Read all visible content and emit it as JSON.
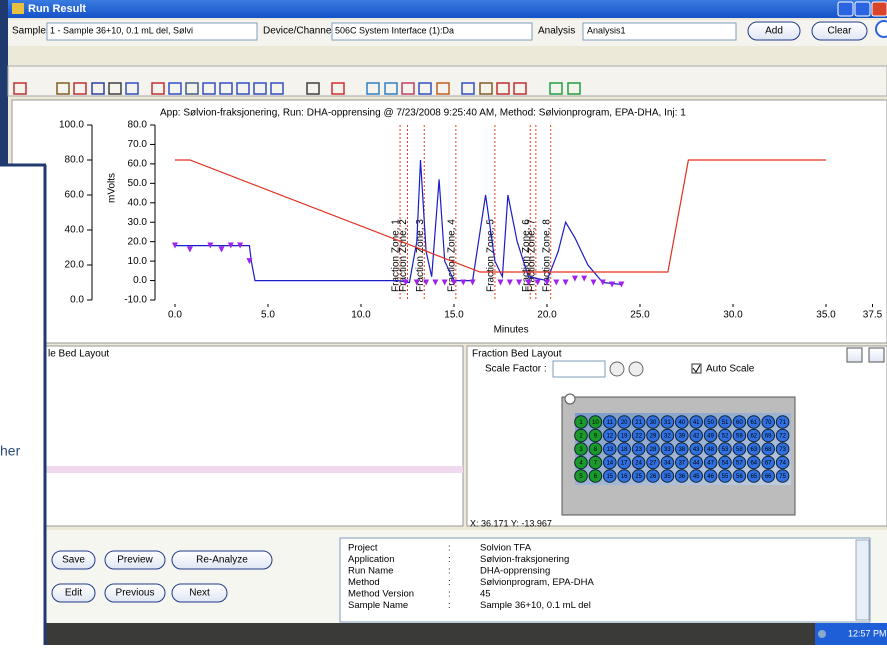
{
  "window": {
    "title": "Run Result"
  },
  "controls": {
    "samples_label": "Samples",
    "sample": "1 - Sample 36+10, 0.1 mL del, Sølvi",
    "device_label": "Device/Channel",
    "device": "506C System Interface (1):Da",
    "analysis_label": "Analysis",
    "analysis": "Analysis1",
    "add": "Add",
    "clear": "Clear"
  },
  "chart_data": {
    "type": "line",
    "title": "App: Sølvion-fraksjonering, Run: DHA-opprensing @ 7/23/2008 9:25:40 AM, Method: Sølvionprogram, EPA-DHA, Inj: 1",
    "x_label": "Minutes",
    "y_label": "mVolts",
    "xlim": [
      -1,
      38
    ],
    "xticks": [
      {
        "value": 0,
        "label": "0.0"
      },
      {
        "value": 5,
        "label": "5.0"
      },
      {
        "value": 10,
        "label": "10.0"
      },
      {
        "value": 15,
        "label": "15.0"
      },
      {
        "value": 20,
        "label": "20.0"
      },
      {
        "value": 25,
        "label": "25.0"
      },
      {
        "value": 30,
        "label": "30.0"
      },
      {
        "value": 35,
        "label": "35.0"
      },
      {
        "value": 37.5,
        "label": "37.5"
      }
    ],
    "ylim": [
      -10,
      80
    ],
    "yticks": [
      {
        "value": -10,
        "label": "-10.0"
      },
      {
        "value": 0,
        "label": "0.0"
      },
      {
        "value": 10,
        "label": "10.0"
      },
      {
        "value": 20,
        "label": "20.0"
      },
      {
        "value": 30,
        "label": "30.0"
      },
      {
        "value": 40,
        "label": "40.0"
      },
      {
        "value": 50,
        "label": "50.0"
      },
      {
        "value": 60,
        "label": "60.0"
      },
      {
        "value": 70,
        "label": "70.0"
      },
      {
        "value": 80,
        "label": "80.0"
      }
    ],
    "y2lim": [
      0,
      100
    ],
    "y2ticks": [
      {
        "value": 0,
        "label": "0.0"
      },
      {
        "value": 20,
        "label": "20.0"
      },
      {
        "value": 40,
        "label": "40.0"
      },
      {
        "value": 60,
        "label": "60.0"
      },
      {
        "value": 80,
        "label": "80.0"
      },
      {
        "value": 100,
        "label": "100.0"
      }
    ],
    "series": [
      {
        "color": "#1c1cc8",
        "x": [
          0,
          4.0,
          4.1,
          4.3,
          12.0,
          12.6,
          13.0,
          13.2,
          13.5,
          13.8,
          14.2,
          14.5,
          15.0,
          16.0,
          16.7,
          17.2,
          17.6,
          17.9,
          18.4,
          19.0,
          20.0,
          20.6,
          21.0,
          21.5,
          22.2,
          23.0,
          24.0
        ],
        "values": [
          18,
          18,
          10,
          0,
          0,
          -1,
          20,
          62,
          15,
          2,
          52,
          10,
          0,
          0,
          44,
          10,
          2,
          44,
          20,
          2,
          0,
          15,
          30,
          22,
          8,
          -1,
          -2
        ]
      },
      {
        "color": "#e03020",
        "axis": "y2",
        "x": [
          0,
          0.8,
          16.4,
          26.5,
          27.6,
          35
        ],
        "values": [
          80,
          80,
          16,
          16,
          80,
          80
        ]
      },
      {
        "color": "#a020f0",
        "marker": "triangle",
        "x": [
          0,
          0.8,
          1.9,
          2.5,
          3.0,
          3.5,
          4.0,
          12.4,
          13.0,
          13.5,
          14.0,
          14.5,
          15.0,
          15.5,
          16.0,
          17.5,
          18.0,
          18.5,
          19.0,
          19.5,
          20.0,
          20.5,
          21.0,
          21.5,
          22.0,
          22.5,
          23.0,
          23.5,
          24.0
        ],
        "values": [
          18,
          16,
          18,
          16,
          18,
          18,
          10,
          -1,
          -1,
          -1,
          -1,
          -1,
          -1,
          -1,
          -1,
          -1,
          -1,
          -1,
          -1,
          -1,
          -1,
          -1,
          -1,
          1,
          1,
          -1,
          -1,
          -2,
          -2
        ]
      }
    ],
    "fraction_zones": {
      "color": "#e04020",
      "x": [
        12.1,
        12.5,
        13.4,
        15.1,
        17.2,
        19.1,
        19.4,
        20.2
      ],
      "labels": [
        "Fraction Zone, 1",
        "Fraction Zone, 2",
        "Fraction Zone, 3",
        "Fraction Zone, 4",
        "Fraction Zone, 5",
        "Fraction Zone, 6",
        "Fraction Zone, 7",
        "Fraction Zone, 8"
      ]
    }
  },
  "sample_bed": {
    "title": "le Bed Layout"
  },
  "fraction_bed": {
    "title": "Fraction Bed Layout",
    "scale_label": "Scale Factor :",
    "auto_scale": "Auto Scale",
    "coords": "X: 36.171  Y: -13.967",
    "rack": [
      [
        1,
        10,
        11,
        20,
        21,
        30,
        31,
        40,
        41,
        50,
        51,
        60,
        61,
        70,
        71
      ],
      [
        2,
        9,
        12,
        19,
        22,
        29,
        32,
        39,
        42,
        49,
        52,
        59,
        62,
        69,
        72
      ],
      [
        3,
        8,
        13,
        18,
        23,
        28,
        33,
        38,
        43,
        48,
        53,
        58,
        63,
        68,
        73
      ],
      [
        4,
        7,
        14,
        17,
        24,
        27,
        34,
        37,
        44,
        47,
        54,
        57,
        64,
        67,
        74
      ],
      [
        5,
        6,
        15,
        16,
        25,
        26,
        35,
        36,
        45,
        46,
        55,
        56,
        65,
        66,
        75
      ]
    ]
  },
  "buttons": [
    "Save",
    "Preview",
    "Re-Analyze",
    "Edit",
    "Previous",
    "Next"
  ],
  "info": {
    "rows": [
      [
        "Project",
        ":",
        "Solvion TFA"
      ],
      [
        "Application",
        ":",
        "Sølvion-fraksjonering"
      ],
      [
        "Run Name",
        ":",
        "DHA-opprensing"
      ],
      [
        "Method",
        ":",
        "Sølvionprogram, EPA-DHA"
      ],
      [
        "Method Version",
        ":",
        "45"
      ],
      [
        "Sample Name",
        ":",
        "Sample 36+10, 0.1 mL del"
      ]
    ]
  },
  "taskbar": {
    "time": "12:57 PM"
  },
  "slide": {
    "text": "her"
  }
}
